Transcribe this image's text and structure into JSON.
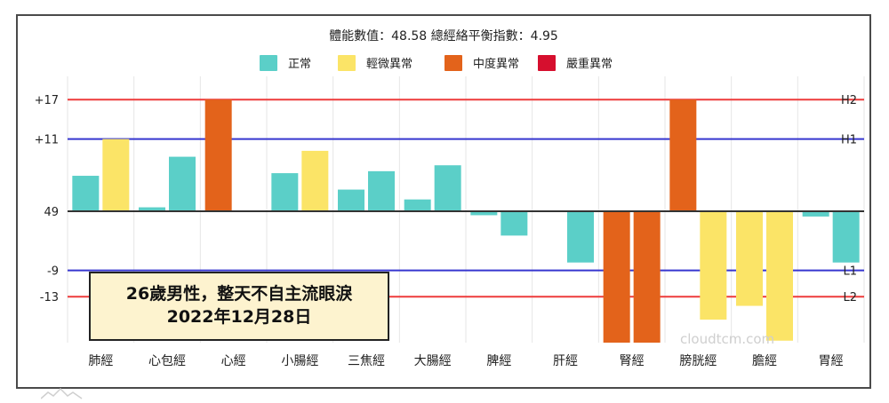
{
  "header": {
    "title": "體能數值：48.58 總經絡平衡指數：4.95"
  },
  "legend": [
    {
      "label": "正常",
      "color": "#5bcfc8"
    },
    {
      "label": "輕微異常",
      "color": "#fbe467"
    },
    {
      "label": "中度異常",
      "color": "#e3631b"
    },
    {
      "label": "嚴重異常",
      "color": "#d60f2e"
    }
  ],
  "note": {
    "line1": "26歲男性，整天不自主流眼淚",
    "line2": "2022年12月28日"
  },
  "watermark": "cloudtcm.com",
  "chart_data": {
    "type": "bar",
    "title": "體能數值：48.58 總經絡平衡指數：4.95",
    "categories": [
      "肺經",
      "心包經",
      "心經",
      "小腸經",
      "三焦經",
      "大腸經",
      "脾經",
      "肝經",
      "腎經",
      "膀胱經",
      "膽經",
      "胃經"
    ],
    "baseline_label": "49",
    "y_tick_labels": [
      {
        "value": 17,
        "label": "+17"
      },
      {
        "value": 11,
        "label": "+11"
      },
      {
        "value": 0,
        "label": "49"
      },
      {
        "value": -9,
        "label": "-9"
      },
      {
        "value": -13,
        "label": "-13"
      }
    ],
    "ylim": [
      -20,
      20
    ],
    "reference_lines": [
      {
        "label": "H2",
        "value": 17,
        "color": "#ee3b3b"
      },
      {
        "label": "H1",
        "value": 11,
        "color": "#3636cf"
      },
      {
        "label": "L1",
        "value": -9,
        "color": "#3636cf"
      },
      {
        "label": "L2",
        "value": -13,
        "color": "#ee3b3b"
      }
    ],
    "series": [
      {
        "side": "left",
        "values": [
          5.4,
          0.6,
          17,
          5.8,
          3.3,
          1.8,
          -0.6,
          0,
          -20,
          17,
          -14.4,
          -0.8
        ],
        "levels": [
          "正常",
          "正常",
          "中度異常",
          "正常",
          "正常",
          "正常",
          "正常",
          "正常",
          "中度異常",
          "中度異常",
          "輕微異常",
          "正常"
        ]
      },
      {
        "side": "right",
        "values": [
          11,
          8.3,
          0,
          9.2,
          6.1,
          7.0,
          -3.7,
          -7.8,
          -20,
          -16.5,
          -19.7,
          -7.8
        ],
        "levels": [
          "輕微異常",
          "正常",
          "正常",
          "輕微異常",
          "正常",
          "正常",
          "正常",
          "正常",
          "中度異常",
          "輕微異常",
          "輕微異常",
          "正常"
        ]
      }
    ]
  }
}
